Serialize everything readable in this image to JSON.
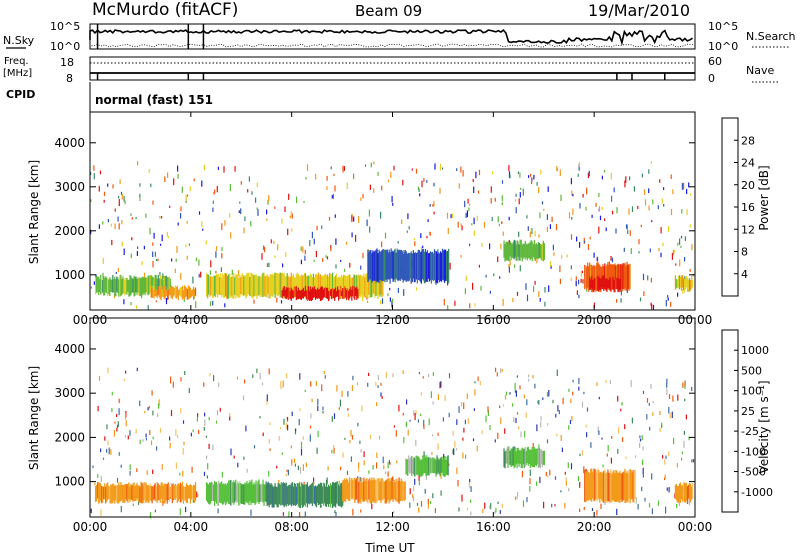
{
  "header": {
    "station": "McMurdo (fitACF)",
    "beam": "Beam 09",
    "date": "19/Mar/2010"
  },
  "summary_panel": {
    "left_label_sky": "N.Sky",
    "left_label_freq_1": "Freq.",
    "left_label_freq_2": "[MHz]",
    "left_label_cpid": "CPID",
    "right_label_search": "N.Search",
    "right_label_nave": "Nave",
    "sky_ticks": [
      "10^5",
      "10^0"
    ],
    "search_ticks": [
      "10^5",
      "10^0"
    ],
    "freq_ticks": [
      "18",
      "8"
    ],
    "nave_ticks": [
      "60",
      "0"
    ],
    "cpid_text": "normal (fast) 151"
  },
  "colors": {
    "power_scale": [
      "#1a1ae0",
      "#2d56b8",
      "#3a8a6a",
      "#5fb83c",
      "#e8d020",
      "#f39a1a",
      "#f05a10",
      "#e01010"
    ],
    "velocity_scale": [
      "#2a3ab0",
      "#3f6fa8",
      "#3f8a5a",
      "#56c03a",
      "#b8b8b8",
      "#f8c060",
      "#f39a1a",
      "#f05a10",
      "#e01010"
    ]
  },
  "chart_data": [
    {
      "type": "heatmap",
      "name": "power-panel",
      "xlabel": "",
      "ylabel": "Slant Range [km]",
      "x_ticks": [
        "00:00",
        "04:00",
        "08:00",
        "12:00",
        "16:00",
        "20:00",
        "00:00"
      ],
      "y_ticks": [
        "1000",
        "2000",
        "3000",
        "4000"
      ],
      "colorbar_label": "Power [dB]",
      "colorbar_ticks": [
        "4",
        "8",
        "12",
        "16",
        "20",
        "24",
        "28"
      ],
      "regions": [
        {
          "t0": 0.2,
          "t1": 3.2,
          "r0": 500,
          "r1": 1000,
          "level": 3
        },
        {
          "t0": 2.4,
          "t1": 4.2,
          "r0": 420,
          "r1": 760,
          "level": 5
        },
        {
          "t0": 4.6,
          "t1": 11.6,
          "r0": 450,
          "r1": 1050,
          "level": 4
        },
        {
          "t0": 7.6,
          "t1": 10.6,
          "r0": 400,
          "r1": 750,
          "level": 7
        },
        {
          "t0": 11.0,
          "t1": 14.2,
          "r0": 800,
          "r1": 1600,
          "level": 1
        },
        {
          "t0": 16.4,
          "t1": 18.0,
          "r0": 1300,
          "r1": 1800,
          "level": 3
        },
        {
          "t0": 19.6,
          "t1": 21.4,
          "r0": 600,
          "r1": 1300,
          "level": 6
        },
        {
          "t0": 19.8,
          "t1": 21.0,
          "r0": 600,
          "r1": 1000,
          "level": 7
        },
        {
          "t0": 23.2,
          "t1": 23.9,
          "r0": 600,
          "r1": 1000,
          "level": 4
        }
      ]
    },
    {
      "type": "heatmap",
      "name": "velocity-panel",
      "xlabel": "Time UT",
      "ylabel": "Slant Range [km]",
      "x_ticks": [
        "00:00",
        "04:00",
        "08:00",
        "12:00",
        "16:00",
        "20:00",
        "00:00"
      ],
      "y_ticks": [
        "1000",
        "2000",
        "3000",
        "4000"
      ],
      "colorbar_label": "Velocity [m s⁻¹]",
      "colorbar_ticks": [
        "1000",
        "500",
        "100",
        "25",
        "-25",
        "-100",
        "-500",
        "-1000"
      ],
      "regions": [
        {
          "t0": 0.2,
          "t1": 4.2,
          "r0": 500,
          "r1": 1000,
          "level": 6
        },
        {
          "t0": 4.6,
          "t1": 7.0,
          "r0": 450,
          "r1": 1050,
          "level": 3
        },
        {
          "t0": 7.0,
          "t1": 10.0,
          "r0": 400,
          "r1": 1000,
          "level": 2
        },
        {
          "t0": 10.0,
          "t1": 12.5,
          "r0": 500,
          "r1": 1100,
          "level": 6
        },
        {
          "t0": 12.5,
          "t1": 14.2,
          "r0": 1100,
          "r1": 1600,
          "level": 3
        },
        {
          "t0": 16.4,
          "t1": 18.0,
          "r0": 1300,
          "r1": 1800,
          "level": 3
        },
        {
          "t0": 19.6,
          "t1": 21.6,
          "r0": 500,
          "r1": 1300,
          "level": 6
        },
        {
          "t0": 23.2,
          "t1": 23.9,
          "r0": 500,
          "r1": 1000,
          "level": 6
        }
      ]
    }
  ]
}
